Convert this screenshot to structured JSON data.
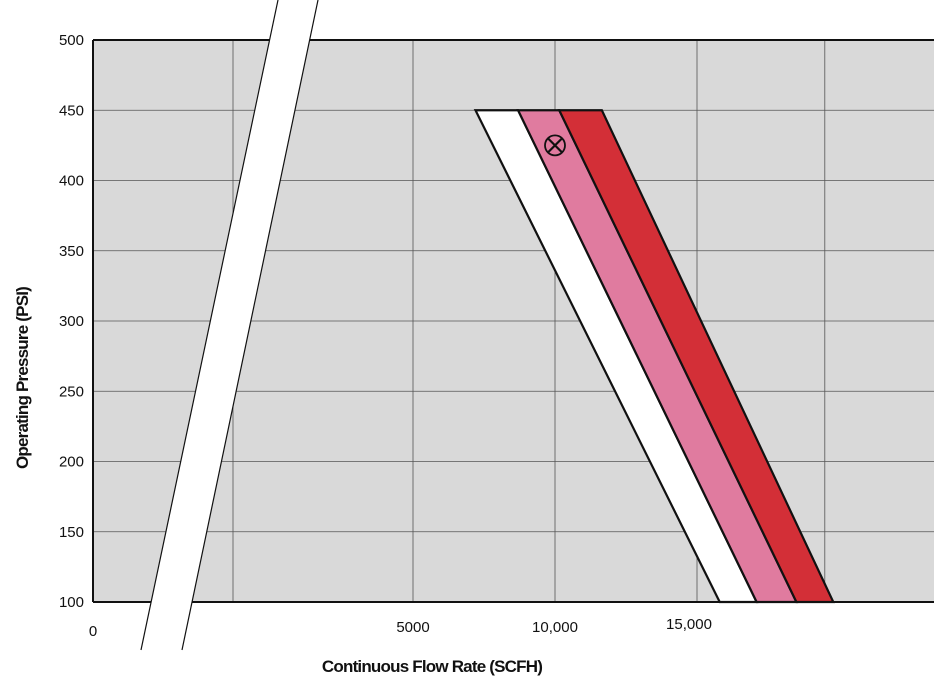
{
  "chart_data": {
    "type": "area",
    "xlabel": "Continuous Flow Rate (SCFH)",
    "ylabel": "Operating Pressure (PSI)",
    "ylim": [
      100,
      500
    ],
    "x_break": "axis break between 0 and 5000",
    "y_ticks": [
      100,
      150,
      200,
      250,
      300,
      350,
      400,
      450,
      500
    ],
    "x_tick_labels": [
      {
        "value": 0,
        "label": "0"
      },
      {
        "value": 5000,
        "label": "5000"
      },
      {
        "value": 10000,
        "label": "10,000"
      },
      {
        "value": 15000,
        "label": "15,000"
      }
    ],
    "grid": true,
    "plot_background": "#d9d9d9",
    "bands": [
      {
        "color": "#ffffff",
        "at_100_psi": [
          15800,
          17100
        ],
        "at_450_psi": [
          7200,
          8700
        ]
      },
      {
        "color": "#e07b9f",
        "at_100_psi": [
          17100,
          18500
        ],
        "at_450_psi": [
          8700,
          10150
        ]
      },
      {
        "color": "#d32f37",
        "at_100_psi": [
          18500,
          19800
        ],
        "at_450_psi": [
          10150,
          11650
        ]
      }
    ],
    "marker": {
      "symbol": "circled-x",
      "x": 10000,
      "y": 425
    }
  }
}
